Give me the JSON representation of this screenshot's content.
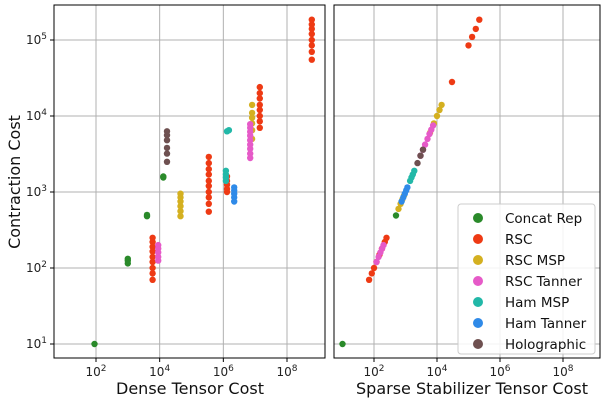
{
  "chart_data": [
    {
      "type": "scatter",
      "panel": "left",
      "xlabel": "Dense Tensor Cost",
      "ylabel": "Contraction Cost",
      "x_scale": "log",
      "y_scale": "log",
      "xlim": [
        5,
        2000000000
      ],
      "ylim": [
        6,
        350000
      ],
      "x_tick_labels": [
        "10^2",
        "10^4",
        "10^6",
        "10^8"
      ],
      "y_tick_labels": [
        "10^1",
        "10^2",
        "10^3",
        "10^4",
        "10^5"
      ],
      "grid": true,
      "series": [
        {
          "name": "Concat Rep",
          "points": [
            [
              90,
              10
            ],
            [
              1000,
              115
            ],
            [
              1000,
              125
            ],
            [
              1000,
              132
            ],
            [
              4000,
              480
            ],
            [
              4000,
              500
            ],
            [
              13000,
              1550
            ],
            [
              13000,
              1600
            ]
          ]
        },
        {
          "name": "RSC",
          "points": [
            [
              6000,
              70
            ],
            [
              6000,
              85
            ],
            [
              6000,
              100
            ],
            [
              6000,
              120
            ],
            [
              6000,
              140
            ],
            [
              6000,
              165
            ],
            [
              6000,
              190
            ],
            [
              6000,
              220
            ],
            [
              6000,
              250
            ],
            [
              350000,
              550
            ],
            [
              350000,
              700
            ],
            [
              350000,
              850
            ],
            [
              350000,
              1000
            ],
            [
              350000,
              1200
            ],
            [
              350000,
              1400
            ],
            [
              350000,
              1700
            ],
            [
              350000,
              2000
            ],
            [
              350000,
              2400
            ],
            [
              350000,
              2900
            ],
            [
              1300000,
              1000
            ],
            [
              1300000,
              1100
            ],
            [
              1300000,
              1250
            ],
            [
              1300000,
              1400
            ],
            [
              1300000,
              1600
            ],
            [
              14000000,
              7000
            ],
            [
              14000000,
              8500
            ],
            [
              14000000,
              10000
            ],
            [
              14000000,
              12000
            ],
            [
              14000000,
              14000
            ],
            [
              14000000,
              17000
            ],
            [
              14000000,
              20000
            ],
            [
              14000000,
              24000
            ],
            [
              600000000,
              55000
            ],
            [
              600000000,
              70000
            ],
            [
              600000000,
              85000
            ],
            [
              600000000,
              100000
            ],
            [
              600000000,
              120000
            ],
            [
              600000000,
              140000
            ],
            [
              600000000,
              160000
            ],
            [
              600000000,
              185000
            ]
          ]
        },
        {
          "name": "RSC MSP",
          "points": [
            [
              45000,
              480
            ],
            [
              45000,
              560
            ],
            [
              45000,
              650
            ],
            [
              45000,
              750
            ],
            [
              45000,
              850
            ],
            [
              45000,
              950
            ],
            [
              8000000,
              5000
            ],
            [
              8000000,
              6500
            ],
            [
              8000000,
              8000
            ],
            [
              8000000,
              9500
            ],
            [
              8000000,
              11000
            ],
            [
              8000000,
              14000
            ]
          ]
        },
        {
          "name": "RSC Tanner",
          "points": [
            [
              9000,
              125
            ],
            [
              9000,
              140
            ],
            [
              9000,
              160
            ],
            [
              9000,
              180
            ],
            [
              9000,
              200
            ],
            [
              7000000,
              2800
            ],
            [
              7000000,
              3200
            ],
            [
              7000000,
              3700
            ],
            [
              7000000,
              4200
            ],
            [
              7000000,
              4800
            ],
            [
              7000000,
              5500
            ],
            [
              7000000,
              6200
            ],
            [
              7000000,
              7000
            ],
            [
              7000000,
              7800
            ]
          ]
        },
        {
          "name": "Ham MSP",
          "points": [
            [
              1200000,
              1400
            ],
            [
              1200000,
              1550
            ],
            [
              1200000,
              1700
            ],
            [
              1200000,
              1900
            ],
            [
              1300000,
              6300
            ],
            [
              1500000,
              6500
            ]
          ]
        },
        {
          "name": "Ham Tanner",
          "points": [
            [
              2200000,
              750
            ],
            [
              2200000,
              850
            ],
            [
              2200000,
              950
            ],
            [
              2200000,
              1050
            ],
            [
              2200000,
              1150
            ]
          ]
        },
        {
          "name": "Holographic",
          "points": [
            [
              17000,
              2500
            ],
            [
              17000,
              3200
            ],
            [
              17000,
              3800
            ],
            [
              17000,
              4800
            ],
            [
              17000,
              5600
            ],
            [
              17000,
              6300
            ]
          ]
        }
      ]
    },
    {
      "type": "scatter",
      "panel": "right",
      "xlabel": "Sparse Stabilizer Tensor Cost",
      "ylabel": "",
      "x_scale": "log",
      "y_scale": "log",
      "xlim": [
        5,
        2000000000
      ],
      "ylim": [
        6,
        350000
      ],
      "x_tick_labels": [
        "10^2",
        "10^4",
        "10^6",
        "10^8"
      ],
      "grid": true,
      "legend": "bottom-right",
      "series": [
        {
          "name": "Concat Rep",
          "points": [
            [
              10,
              10
            ],
            [
              500,
              490
            ]
          ]
        },
        {
          "name": "RSC",
          "points": [
            [
              70,
              70
            ],
            [
              85,
              85
            ],
            [
              100,
              100
            ],
            [
              120,
              120
            ],
            [
              150,
              150
            ],
            [
              180,
              180
            ],
            [
              220,
              220
            ],
            [
              250,
              250
            ],
            [
              30000,
              28000
            ],
            [
              100000,
              85000
            ],
            [
              130000,
              110000
            ],
            [
              170000,
              140000
            ],
            [
              220000,
              185000
            ]
          ]
        },
        {
          "name": "RSC MSP",
          "points": [
            [
              600,
              600
            ],
            [
              700,
              700
            ],
            [
              800,
              800
            ],
            [
              900,
              900
            ],
            [
              6000,
              6000
            ],
            [
              8000,
              8000
            ],
            [
              10000,
              10000
            ],
            [
              12000,
              12000
            ],
            [
              14000,
              14000
            ]
          ]
        },
        {
          "name": "RSC Tanner",
          "points": [
            [
              120,
              120
            ],
            [
              140,
              140
            ],
            [
              160,
              160
            ],
            [
              180,
              180
            ],
            [
              200,
              200
            ],
            [
              3000,
              3000
            ],
            [
              3600,
              3600
            ],
            [
              4200,
              4200
            ],
            [
              5000,
              5000
            ],
            [
              5800,
              5800
            ],
            [
              6600,
              6600
            ],
            [
              7500,
              7500
            ]
          ]
        },
        {
          "name": "Ham MSP",
          "points": [
            [
              1400,
              1400
            ],
            [
              1550,
              1550
            ],
            [
              1700,
              1700
            ],
            [
              1900,
              1900
            ]
          ]
        },
        {
          "name": "Ham Tanner",
          "points": [
            [
              750,
              750
            ],
            [
              850,
              850
            ],
            [
              950,
              950
            ],
            [
              1050,
              1050
            ],
            [
              1150,
              1150
            ]
          ]
        },
        {
          "name": "Holographic",
          "points": [
            [
              2400,
              2400
            ],
            [
              3000,
              3000
            ],
            [
              3600,
              3600
            ]
          ]
        }
      ]
    }
  ],
  "colors": {
    "Concat Rep": "#2a8a2a",
    "RSC": "#ee3a14",
    "RSC MSP": "#d4b020",
    "RSC Tanner": "#e65ac8",
    "Ham MSP": "#22b8a8",
    "Ham Tanner": "#2f8ae8",
    "Holographic": "#6e5050"
  },
  "legend_entries": [
    "Concat Rep",
    "RSC",
    "RSC MSP",
    "RSC Tanner",
    "Ham MSP",
    "Ham Tanner",
    "Holographic"
  ]
}
